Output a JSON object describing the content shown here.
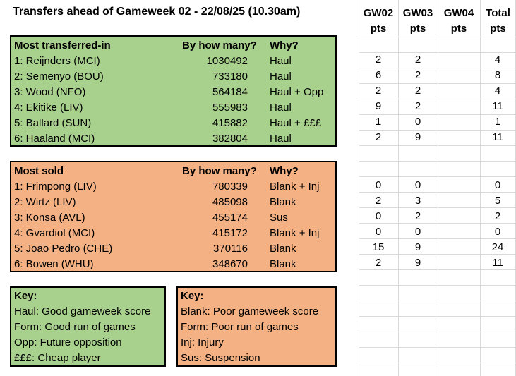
{
  "title": "Transfers ahead of Gameweek 02 - 22/08/25 (10.30am)",
  "transferred_in": {
    "headers": {
      "name": "Most transferred-in",
      "count": "By how many?",
      "why": "Why?"
    },
    "rows": [
      {
        "name": "1: Reijnders (MCI)",
        "count": "1030492",
        "why": "Haul",
        "gw02": "2",
        "gw03": "2",
        "gw04": "",
        "total": "4"
      },
      {
        "name": "2: Semenyo (BOU)",
        "count": "733180",
        "why": "Haul",
        "gw02": "6",
        "gw03": "2",
        "gw04": "",
        "total": "8"
      },
      {
        "name": "3: Wood (NFO)",
        "count": "564184",
        "why": "Haul + Opp",
        "gw02": "2",
        "gw03": "2",
        "gw04": "",
        "total": "4"
      },
      {
        "name": "4: Ekitike (LIV)",
        "count": "555983",
        "why": "Haul",
        "gw02": "9",
        "gw03": "2",
        "gw04": "",
        "total": "11"
      },
      {
        "name": "5: Ballard (SUN)",
        "count": "415882",
        "why": "Haul + £££",
        "gw02": "1",
        "gw03": "0",
        "gw04": "",
        "total": "1"
      },
      {
        "name": "6: Haaland (MCI)",
        "count": "382804",
        "why": "Haul",
        "gw02": "2",
        "gw03": "9",
        "gw04": "",
        "total": "11"
      }
    ]
  },
  "sold": {
    "headers": {
      "name": "Most sold",
      "count": "By how many?",
      "why": "Why?"
    },
    "rows": [
      {
        "name": "1: Frimpong (LIV)",
        "count": "780339",
        "why": "Blank + Inj",
        "gw02": "0",
        "gw03": "0",
        "gw04": "",
        "total": "0"
      },
      {
        "name": "2: Wirtz (LIV)",
        "count": "485098",
        "why": "Blank",
        "gw02": "2",
        "gw03": "3",
        "gw04": "",
        "total": "5"
      },
      {
        "name": "3: Konsa (AVL)",
        "count": "455174",
        "why": "Sus",
        "gw02": "0",
        "gw03": "2",
        "gw04": "",
        "total": "2"
      },
      {
        "name": "4: Gvardiol (MCI)",
        "count": "415172",
        "why": "Blank + Inj",
        "gw02": "0",
        "gw03": "0",
        "gw04": "",
        "total": "0"
      },
      {
        "name": "5: Joao Pedro (CHE)",
        "count": "370116",
        "why": "Blank",
        "gw02": "15",
        "gw03": "9",
        "gw04": "",
        "total": "24"
      },
      {
        "name": "6: Bowen (WHU)",
        "count": "348670",
        "why": "Blank",
        "gw02": "2",
        "gw03": "9",
        "gw04": "",
        "total": "11"
      }
    ]
  },
  "key_green": {
    "title": "Key:",
    "lines": [
      "Haul: Good gameweek score",
      "Form: Good run of games",
      "Opp: Future opposition",
      "£££: Cheap player"
    ]
  },
  "key_orange": {
    "title": "Key:",
    "lines": [
      "Blank: Poor gameweek score",
      "Form: Poor run of games",
      "Inj: Injury",
      "Sus: Suspension"
    ]
  },
  "points_columns": [
    {
      "top": "GW02",
      "bottom": "pts"
    },
    {
      "top": "GW03",
      "bottom": "pts"
    },
    {
      "top": "GW04",
      "bottom": "pts"
    },
    {
      "top": "Total",
      "bottom": "pts"
    }
  ],
  "colors": {
    "green": "#a9d18e",
    "orange": "#f4b183",
    "grid": "#d9d9d9"
  }
}
